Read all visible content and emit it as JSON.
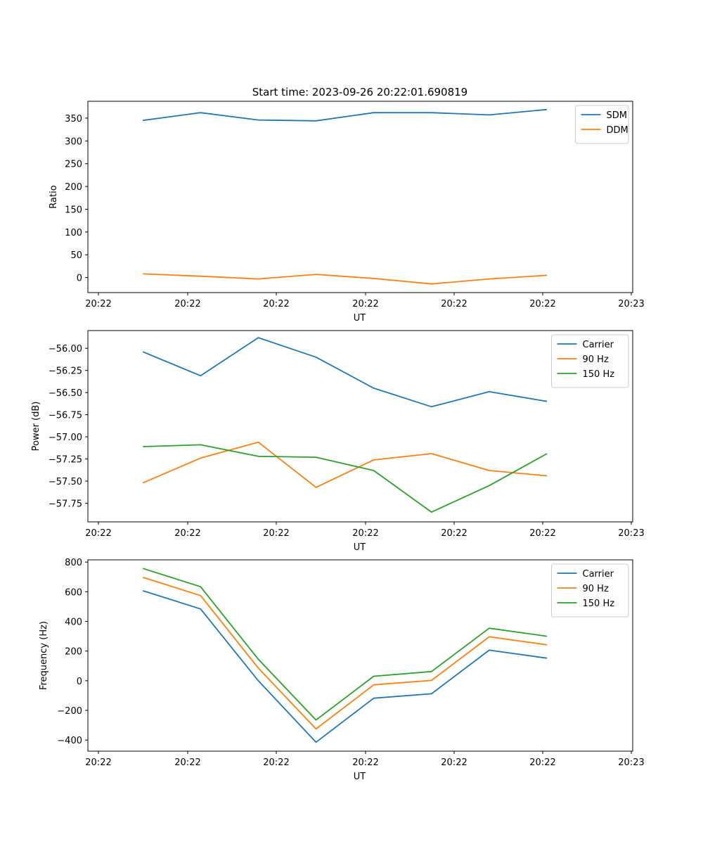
{
  "figure_title": "Start time: 2023-09-26 20:22:01.690819",
  "colors": {
    "blue": "#1f77b4",
    "orange": "#ff7f0e",
    "green": "#2ca02c"
  },
  "chart_data": [
    {
      "type": "line",
      "xlabel": "UT",
      "ylabel": "Ratio",
      "x_tick_labels": [
        "20:22",
        "20:22",
        "20:22",
        "20:22",
        "20:22",
        "20:22",
        "20:23"
      ],
      "ylim": [
        -33,
        387
      ],
      "y_ticks": [
        0,
        50,
        100,
        150,
        200,
        250,
        300,
        350
      ],
      "legend_position": "top-right",
      "x": [
        0.5,
        1.15,
        1.8,
        2.45,
        3.1,
        3.75,
        4.4,
        5.05
      ],
      "series": [
        {
          "name": "SDM",
          "color": "#1f77b4",
          "values": [
            345,
            362,
            346,
            344,
            362,
            362,
            357,
            369
          ]
        },
        {
          "name": "DDM",
          "color": "#ff7f0e",
          "values": [
            8,
            3,
            -3,
            7,
            -2,
            -14,
            -3,
            5
          ]
        }
      ]
    },
    {
      "type": "line",
      "xlabel": "UT",
      "ylabel": "Power (dB)",
      "x_tick_labels": [
        "20:22",
        "20:22",
        "20:22",
        "20:22",
        "20:22",
        "20:22",
        "20:23"
      ],
      "ylim": [
        -57.96,
        -55.8
      ],
      "y_ticks": [
        -56.0,
        -56.25,
        -56.5,
        -56.75,
        -57.0,
        -57.25,
        -57.5,
        -57.75
      ],
      "y_tick_labels": [
        "−56.00",
        "−56.25",
        "−56.50",
        "−56.75",
        "−57.00",
        "−57.25",
        "−57.50",
        "−57.75"
      ],
      "legend_position": "top-right",
      "x": [
        0.5,
        1.15,
        1.8,
        2.45,
        3.1,
        3.75,
        4.4,
        5.05
      ],
      "series": [
        {
          "name": "Carrier",
          "color": "#1f77b4",
          "values": [
            -56.04,
            -56.31,
            -55.88,
            -56.1,
            -56.45,
            -56.66,
            -56.49,
            -56.6
          ]
        },
        {
          "name": "90 Hz",
          "color": "#ff7f0e",
          "values": [
            -57.52,
            -57.24,
            -57.06,
            -57.57,
            -57.26,
            -57.19,
            -57.38,
            -57.44
          ]
        },
        {
          "name": "150 Hz",
          "color": "#2ca02c",
          "values": [
            -57.11,
            -57.09,
            -57.22,
            -57.23,
            -57.38,
            -57.85,
            -57.55,
            -57.19
          ]
        }
      ]
    },
    {
      "type": "line",
      "xlabel": "UT",
      "ylabel": "Frequency (Hz)",
      "x_tick_labels": [
        "20:22",
        "20:22",
        "20:22",
        "20:22",
        "20:22",
        "20:22",
        "20:23"
      ],
      "ylim": [
        -475,
        815
      ],
      "y_ticks": [
        800,
        600,
        400,
        200,
        0,
        -200,
        -400
      ],
      "y_tick_labels": [
        "800",
        "600",
        "400",
        "200",
        "0",
        "−200",
        "−400"
      ],
      "legend_position": "top-right",
      "x": [
        0.5,
        1.15,
        1.8,
        2.45,
        3.1,
        3.75,
        4.4,
        5.05
      ],
      "series": [
        {
          "name": "Carrier",
          "color": "#1f77b4",
          "values": [
            607,
            484,
            0,
            -415,
            -118,
            -88,
            206,
            152
          ]
        },
        {
          "name": "90 Hz",
          "color": "#ff7f0e",
          "values": [
            697,
            574,
            85,
            -325,
            -28,
            2,
            296,
            242
          ]
        },
        {
          "name": "150 Hz",
          "color": "#2ca02c",
          "values": [
            757,
            634,
            145,
            -265,
            30,
            62,
            354,
            300
          ]
        }
      ]
    }
  ]
}
